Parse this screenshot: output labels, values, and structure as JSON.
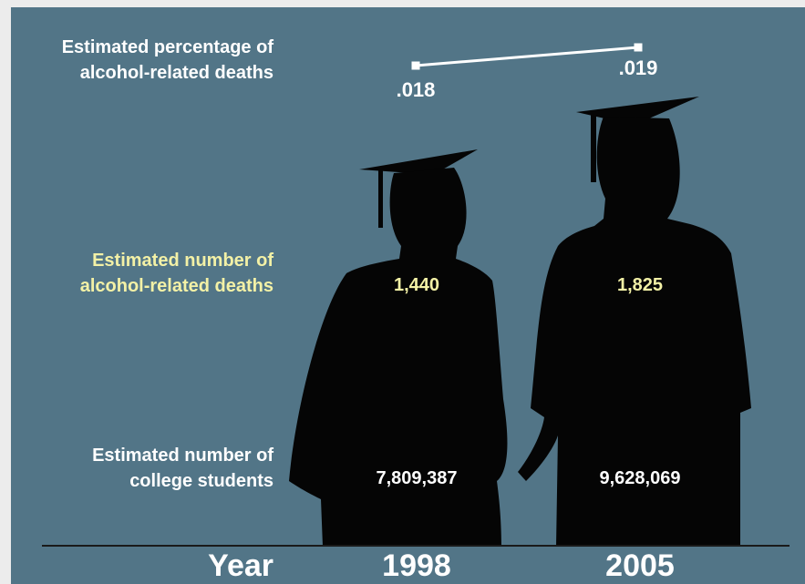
{
  "chart_data": {
    "type": "line",
    "x": [
      "1998",
      "2005"
    ],
    "xlabel": "Year",
    "series": [
      {
        "name": "Estimated percentage of alcohol-related deaths",
        "values": [
          0.018,
          0.019
        ],
        "labels": [
          ".018",
          ".019"
        ]
      }
    ],
    "rows": [
      {
        "label": "Estimated number of alcohol-related deaths",
        "values": [
          1440,
          1825
        ],
        "labels": [
          "1,440",
          "1,825"
        ]
      },
      {
        "label": "Estimated number of college students",
        "values": [
          7809387,
          9628069
        ],
        "labels": [
          "7,809,387",
          "9,628,069"
        ]
      }
    ]
  },
  "labels": {
    "pct_line1": "Estimated percentage of",
    "pct_line2": "alcohol-related deaths",
    "deaths_line1": "Estimated number of",
    "deaths_line2": "alcohol-related deaths",
    "students_line1": "Estimated number of",
    "students_line2": "college students",
    "year": "Year"
  },
  "colors": {
    "background": "#527587",
    "silhouette": "#050505",
    "highlight_text": "#f3f1a6",
    "text": "#ffffff"
  }
}
